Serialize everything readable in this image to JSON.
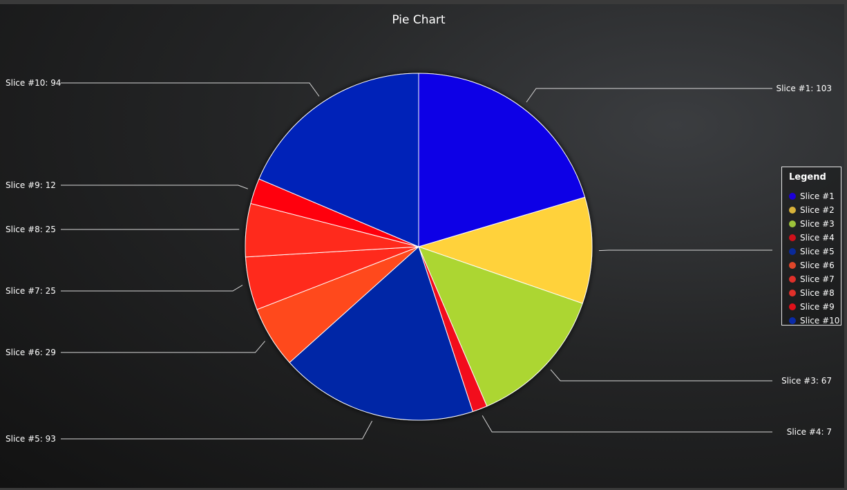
{
  "chart_data": {
    "type": "pie",
    "title": "Pie Chart",
    "slices": [
      {
        "label": "Slice #1",
        "value": 103,
        "color": "#1100e6",
        "callout": "Slice #1: 103"
      },
      {
        "label": "Slice #2",
        "value": 50,
        "color": "#ffd23a",
        "callout": ""
      },
      {
        "label": "Slice #3",
        "value": 67,
        "color": "#acd633",
        "callout": "Slice #3: 67"
      },
      {
        "label": "Slice #4",
        "value": 7,
        "color": "#f20f1c",
        "callout": "Slice #4: 7"
      },
      {
        "label": "Slice #5",
        "value": 93,
        "color": "#0027a6",
        "callout": "Slice #5: 93"
      },
      {
        "label": "Slice #6",
        "value": 29,
        "color": "#ff4a1f",
        "callout": "Slice #6: 29"
      },
      {
        "label": "Slice #7",
        "value": 25,
        "color": "#ff2a1c",
        "callout": "Slice #7: 25"
      },
      {
        "label": "Slice #8",
        "value": 25,
        "color": "#ff2a1c",
        "callout": "Slice #8: 25"
      },
      {
        "label": "Slice #9",
        "value": 12,
        "color": "#ff0010",
        "callout": "Slice #9: 12"
      },
      {
        "label": "Slice #10",
        "value": 94,
        "color": "#0020b8",
        "callout": "Slice #10: 94"
      }
    ],
    "legend": {
      "title": "Legend",
      "position": "right",
      "items": [
        {
          "label": "Slice #1",
          "color": "#1c00d8"
        },
        {
          "label": "Slice #2",
          "color": "#d8b23a"
        },
        {
          "label": "Slice #3",
          "color": "#9cc23a"
        },
        {
          "label": "Slice #4",
          "color": "#d0101a"
        },
        {
          "label": "Slice #5",
          "color": "#0a2a9a"
        },
        {
          "label": "Slice #6",
          "color": "#e0462a"
        },
        {
          "label": "Slice #7",
          "color": "#e0302a"
        },
        {
          "label": "Slice #8",
          "color": "#e0302a"
        },
        {
          "label": "Slice #9",
          "color": "#e0101a"
        },
        {
          "label": "Slice #10",
          "color": "#0a2aa8"
        }
      ]
    }
  }
}
